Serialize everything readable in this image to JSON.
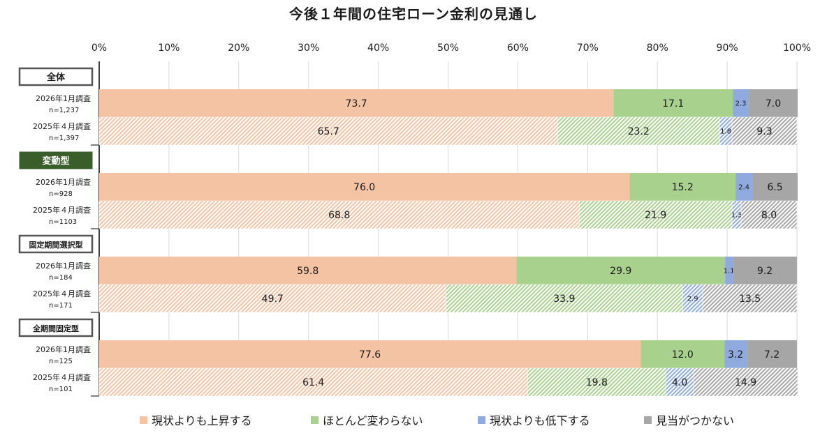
{
  "title": "今後１年間の住宅ローン金利の見通し",
  "chart_data": {
    "type": "bar",
    "orientation": "horizontal",
    "stacked": true,
    "title": "今後１年間の住宅ローン金利の見通し",
    "x_ticks": [
      "0%",
      "10%",
      "20%",
      "30%",
      "40%",
      "50%",
      "60%",
      "70%",
      "80%",
      "90%",
      "100%"
    ],
    "xlim": [
      0,
      100
    ],
    "grid": true,
    "legend_position": "bottom",
    "series": [
      {
        "name": "現状よりも上昇する",
        "color": "#f4c3a4"
      },
      {
        "name": "ほとんど変わらない",
        "color": "#a9d18e"
      },
      {
        "name": "現状よりも低下する",
        "color": "#8faadc"
      },
      {
        "name": "見当がつかない",
        "color": "#a6a6a6"
      }
    ],
    "groups": [
      {
        "label": "全体",
        "label_style": "outline",
        "rows": [
          {
            "label": "2026年1月調査",
            "n": "n=1,237",
            "style": "solid",
            "values": [
              73.7,
              17.1,
              2.3,
              7.0
            ],
            "labels": [
              "73.7",
              "17.1",
              "2.3",
              "7.0"
            ]
          },
          {
            "label": "2025年４月調査",
            "n": "n=1,397",
            "style": "hatched",
            "values": [
              65.7,
              23.2,
              1.8,
              9.3
            ],
            "labels": [
              "65.7",
              "23.2",
              "1.8",
              "9.3"
            ]
          }
        ]
      },
      {
        "label": "変動型",
        "label_style": "filled",
        "rows": [
          {
            "label": "2026年1月調査",
            "n": "n=928",
            "style": "solid",
            "values": [
              76.0,
              15.2,
              2.4,
              6.5
            ],
            "labels": [
              "76.0",
              "15.2",
              "2.4",
              "6.5"
            ]
          },
          {
            "label": "2025年４月調査",
            "n": "n=1103",
            "style": "hatched",
            "values": [
              68.8,
              21.9,
              1.3,
              8.0
            ],
            "labels": [
              "68.8",
              "21.9",
              "1.3",
              "8.0"
            ]
          }
        ]
      },
      {
        "label": "固定期間選択型",
        "label_style": "outline",
        "rows": [
          {
            "label": "2026年1月調査",
            "n": "n=184",
            "style": "solid",
            "values": [
              59.8,
              29.9,
              1.1,
              9.2
            ],
            "labels": [
              "59.8",
              "29.9",
              "1.1",
              "9.2"
            ]
          },
          {
            "label": "2025年４月調査",
            "n": "n=171",
            "style": "hatched",
            "values": [
              49.7,
              33.9,
              2.9,
              13.5
            ],
            "labels": [
              "49.7",
              "33.9",
              "2.9",
              "13.5"
            ]
          }
        ]
      },
      {
        "label": "全期間固定型",
        "label_style": "outline",
        "rows": [
          {
            "label": "2026年1月調査",
            "n": "n=125",
            "style": "solid",
            "values": [
              77.6,
              12.0,
              3.2,
              7.2
            ],
            "labels": [
              "77.6",
              "12.0",
              "3.2",
              "7.2"
            ]
          },
          {
            "label": "2025年４月調査",
            "n": "n=101",
            "style": "hatched",
            "values": [
              61.4,
              19.8,
              4.0,
              14.9
            ],
            "labels": [
              "61.4",
              "19.8",
              "4.0",
              "14.9"
            ]
          }
        ]
      }
    ]
  }
}
